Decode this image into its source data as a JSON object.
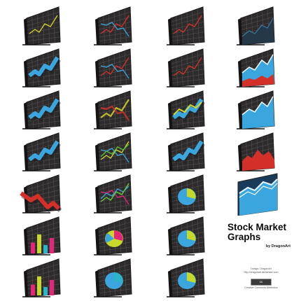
{
  "title": {
    "line1": "Stock Market",
    "line2": "Graphs",
    "byline": "by DragonArt"
  },
  "credits": {
    "line1": "Design: DragonArt",
    "line2": "http://dragonart.deviantart.com",
    "badge_text": "cc",
    "line3": "Creative Commons Attribution"
  },
  "colors": {
    "board_dark": "#2e2b2c",
    "board_edge": "#1a1819",
    "grid": "#8a8384",
    "blue": "#3aa6dd",
    "red": "#d4302a",
    "yellow_green": "#c6d82a",
    "pink": "#e6247a",
    "teal": "#2bb3c8"
  },
  "icons": [
    {
      "name": "line-chart-yellow-icon",
      "kind": "lines",
      "series": [
        "yellow"
      ]
    },
    {
      "name": "line-chart-blue-red-icon",
      "kind": "lines",
      "series": [
        "red",
        "blue"
      ]
    },
    {
      "name": "line-chart-red-icon",
      "kind": "lines",
      "series": [
        "red"
      ]
    },
    {
      "name": "dark-area-chart-icon",
      "kind": "darkarea",
      "series": [
        "blue"
      ]
    },
    {
      "name": "blue-arrow-chart-icon",
      "kind": "ribbon",
      "series": [
        "blue"
      ]
    },
    {
      "name": "line-chart-blue-red-icon-2",
      "kind": "lines",
      "series": [
        "red",
        "blue"
      ]
    },
    {
      "name": "line-chart-red-down-icon",
      "kind": "lines",
      "series": [
        "red"
      ]
    },
    {
      "name": "blue-red-area-chart-icon",
      "kind": "area",
      "series": [
        "blue",
        "red"
      ]
    },
    {
      "name": "blue-ribbon-chart-icon",
      "kind": "ribbon",
      "series": [
        "blue"
      ]
    },
    {
      "name": "glowing-lines-chart-icon",
      "kind": "glow",
      "series": [
        "yellow",
        "red"
      ]
    },
    {
      "name": "multi-ribbon-chart-icon",
      "kind": "multiribbon",
      "series": [
        "yellow",
        "blue"
      ]
    },
    {
      "name": "blue-area-chart-icon",
      "kind": "bluearea",
      "series": [
        "blue"
      ]
    },
    {
      "name": "blue-ribbon-chart-icon-2",
      "kind": "ribbon",
      "series": [
        "blue"
      ]
    },
    {
      "name": "multi-line-chart-icon",
      "kind": "lines",
      "series": [
        "yellow",
        "blue",
        "green"
      ]
    },
    {
      "name": "blue-ribbon-chart-icon-3",
      "kind": "ribbon",
      "series": [
        "blue"
      ]
    },
    {
      "name": "red-area-chart-icon",
      "kind": "redarea",
      "series": [
        "red"
      ]
    },
    {
      "name": "red-arrow-chart-icon",
      "kind": "redribbon",
      "series": [
        "red"
      ]
    },
    {
      "name": "multi-line-chart-icon-2",
      "kind": "lines",
      "series": [
        "yellow",
        "pink",
        "blue",
        "green"
      ]
    },
    {
      "name": "pie-chart-icon",
      "kind": "pie",
      "series": [
        "yellow_green",
        "blue"
      ]
    },
    {
      "name": "big-blue-area-chart-icon",
      "kind": "bigarea",
      "series": [
        "blue"
      ]
    },
    {
      "name": "bar-chart-icon",
      "kind": "bars",
      "series": [
        "pink",
        "yellow_green",
        "teal"
      ]
    },
    {
      "name": "pie-chart-multicolor-icon",
      "kind": "pie3",
      "series": [
        "pink",
        "yellow_green",
        "blue"
      ]
    },
    {
      "name": "pie-chart-icon-2",
      "kind": "pie",
      "series": [
        "yellow_green",
        "blue"
      ]
    },
    {
      "name": "empty-slot",
      "kind": "none",
      "series": []
    },
    {
      "name": "bar-chart-icon-2",
      "kind": "bars",
      "series": [
        "pink",
        "yellow_green",
        "teal"
      ]
    },
    {
      "name": "pie-chart-blue-icon",
      "kind": "pie",
      "series": [
        "teal",
        "blue"
      ]
    },
    {
      "name": "pie-chart-icon-3",
      "kind": "pie",
      "series": [
        "yellow_green",
        "blue"
      ]
    },
    {
      "name": "empty-slot-2",
      "kind": "none",
      "series": []
    }
  ]
}
